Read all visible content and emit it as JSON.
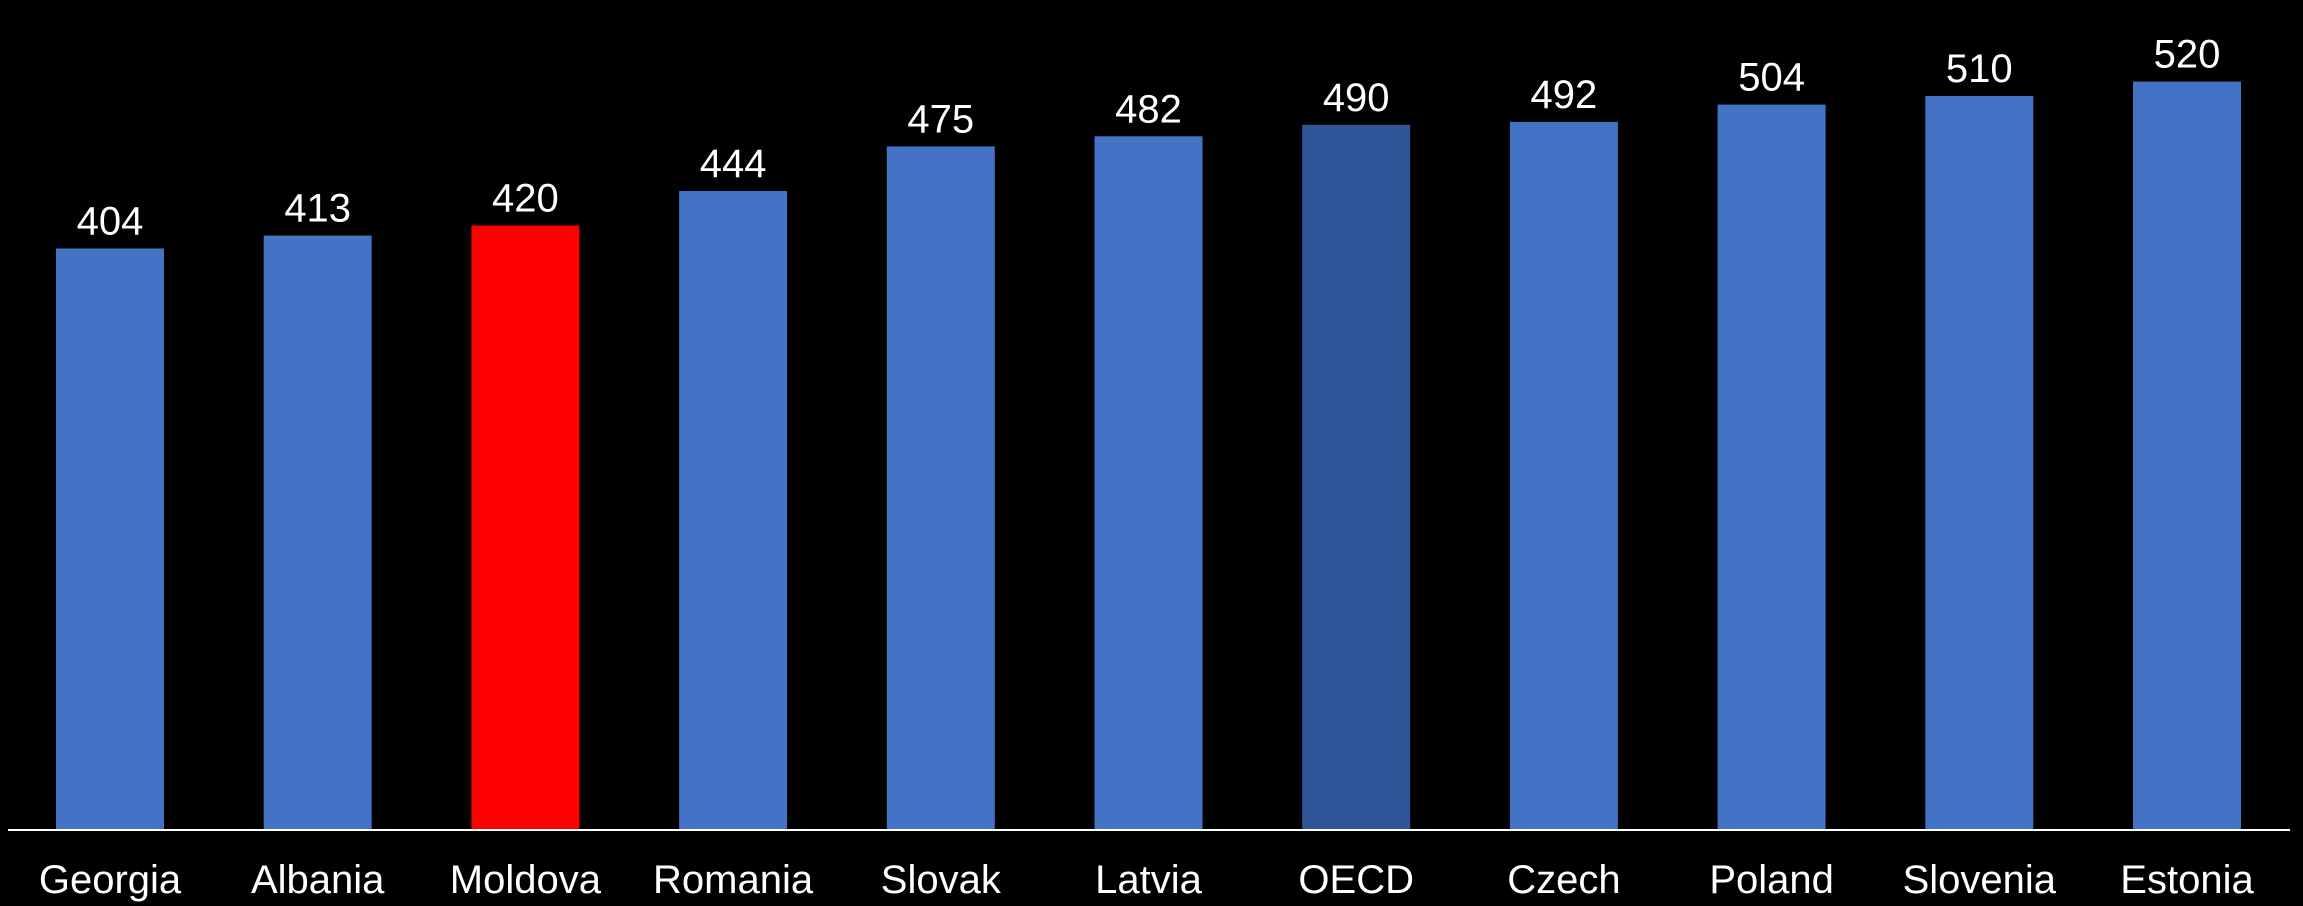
{
  "chart_data": {
    "type": "bar",
    "categories": [
      "Georgia",
      "Albania",
      "Moldova",
      "Romania",
      "Slovak",
      "Latvia",
      "OECD",
      "Czech",
      "Poland",
      "Slovenia",
      "Estonia"
    ],
    "values": [
      404,
      413,
      420,
      444,
      475,
      482,
      490,
      492,
      504,
      510,
      520
    ],
    "bar_colors": [
      "#4472C4",
      "#4472C4",
      "#FF0000",
      "#4472C4",
      "#4472C4",
      "#4472C4",
      "#2F5597",
      "#4472C4",
      "#4472C4",
      "#4472C4",
      "#4472C4"
    ],
    "title": "",
    "xlabel": "",
    "ylabel": "",
    "ylim": [
      0,
      535
    ],
    "data_labels": true,
    "grid": false,
    "legend": "none"
  },
  "colors": {
    "background": "#000000",
    "text": "#FFFFFF",
    "axis": "#FFFFFF",
    "default_bar": "#4472C4",
    "highlight_bar": "#FF0000",
    "benchmark_bar": "#2F5597"
  }
}
